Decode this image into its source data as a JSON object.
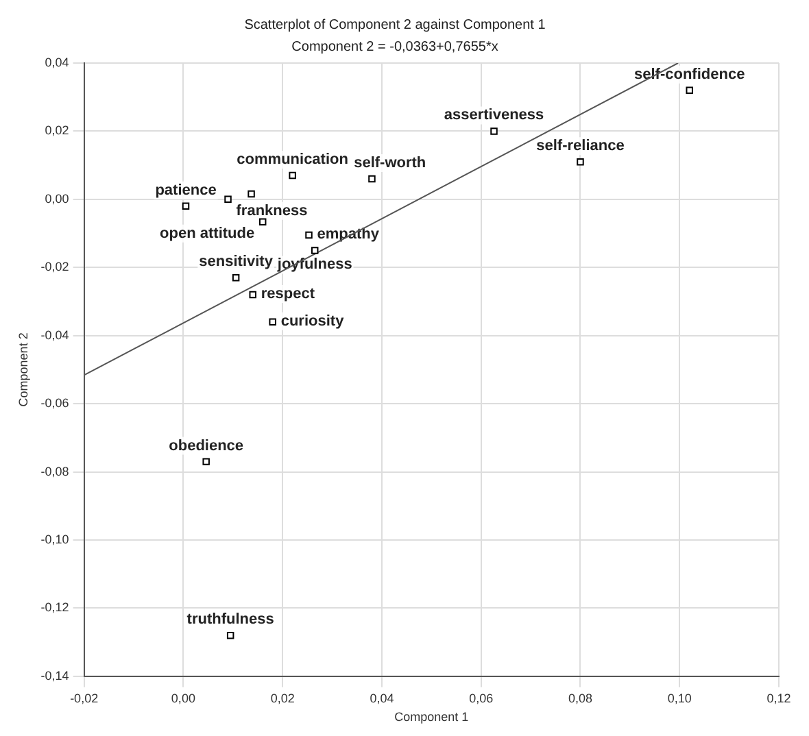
{
  "chart_data": {
    "type": "scatter",
    "title": "Scatterplot of Component 2 against Component 1",
    "subtitle": "Component 2 = -0,0363+0,7655*x",
    "xlabel": "Component 1",
    "ylabel": "Component 2",
    "x": [
      0.102,
      0.0626,
      0.08,
      0.022,
      0.038,
      0.0005,
      0.009,
      0.0137,
      0.016,
      0.0253,
      0.0265,
      0.0106,
      0.014,
      0.018,
      0.0046,
      0.0095
    ],
    "series": [
      {
        "color": "#000000",
        "values": [
          0.032,
          0.02,
          0.011,
          0.007,
          0.006,
          -0.002,
          0.0,
          0.0016,
          -0.0066,
          -0.0105,
          -0.015,
          -0.023,
          -0.028,
          -0.036,
          -0.077,
          -0.128
        ]
      },
      {
        "type": "line",
        "marker": "none",
        "color": "#555555",
        "x": [
          -0.02,
          0.0997
        ],
        "values": [
          -0.0516,
          0.04
        ]
      }
    ],
    "marker": "square",
    "grid": true,
    "legend": false,
    "xlim": [
      -0.02,
      0.12
    ],
    "ylim": [
      -0.14,
      0.04
    ],
    "xticks": [
      {
        "value": -0.02,
        "label": "-0,02"
      },
      {
        "value": 0,
        "label": "0,00"
      },
      {
        "value": 0.02,
        "label": "0,02"
      },
      {
        "value": 0.04,
        "label": "0,04"
      },
      {
        "value": 0.06,
        "label": "0,06"
      },
      {
        "value": 0.08,
        "label": "0,08"
      },
      {
        "value": 0.1,
        "label": "0,10"
      },
      {
        "value": 0.12,
        "label": "0,12"
      }
    ],
    "yticks": [
      {
        "value": -0.14,
        "label": "-0,14"
      },
      {
        "value": -0.12,
        "label": "-0,12"
      },
      {
        "value": -0.1,
        "label": "-0,10"
      },
      {
        "value": -0.08,
        "label": "-0,08"
      },
      {
        "value": -0.06,
        "label": "-0,06"
      },
      {
        "value": -0.04,
        "label": "-0,04"
      },
      {
        "value": -0.02,
        "label": "-0,02"
      },
      {
        "value": 0,
        "label": "0,00"
      },
      {
        "value": 0.02,
        "label": "0,02"
      },
      {
        "value": 0.04,
        "label": "0,04"
      }
    ],
    "annotations": [
      {
        "text": "self-confidence",
        "x": 0.102,
        "y": 0.032
      },
      {
        "text": "assertiveness",
        "x": 0.0626,
        "y": 0.02
      },
      {
        "text": "self-reliance",
        "x": 0.08,
        "y": 0.011
      },
      {
        "text": "communication",
        "x": 0.022,
        "y": 0.007
      },
      {
        "text": "self-worth",
        "x": 0.038,
        "y": 0.006
      },
      {
        "text": "patience",
        "x": 0.0005,
        "y": -0.002
      },
      {
        "text": "frankness",
        "x": 0.009,
        "y": 0.0
      },
      {
        "text": "open attitude",
        "x": 0.016,
        "y": -0.0066
      },
      {
        "text": "empathy",
        "x": 0.0253,
        "y": -0.0105
      },
      {
        "text": "joyfulness",
        "x": 0.0265,
        "y": -0.015
      },
      {
        "text": "sensitivity",
        "x": 0.0106,
        "y": -0.023
      },
      {
        "text": "respect",
        "x": 0.014,
        "y": -0.028
      },
      {
        "text": "curiosity",
        "x": 0.018,
        "y": -0.036
      },
      {
        "text": "obedience",
        "x": 0.0046,
        "y": -0.077
      },
      {
        "text": "truthfulness",
        "x": 0.0095,
        "y": -0.128
      }
    ]
  }
}
